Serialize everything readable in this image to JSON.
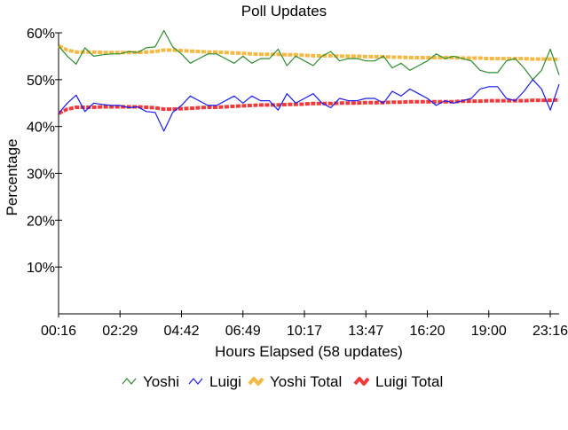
{
  "chart_data": {
    "type": "line",
    "title": "Poll Updates",
    "xlabel": "Hours Elapsed (58 updates)",
    "ylabel": "Percentage",
    "ylim": [
      0,
      60
    ],
    "yticks": [
      "10%",
      "20%",
      "30%",
      "40%",
      "50%",
      "60%"
    ],
    "xticks": [
      "00:16",
      "02:29",
      "04:42",
      "06:49",
      "10:17",
      "13:47",
      "16:20",
      "19:00",
      "23:16"
    ],
    "x_count": 58,
    "grid": false,
    "legend_position": "bottom",
    "series": [
      {
        "name": "Yoshi",
        "color": "#2e8b2e",
        "style": "thin",
        "values": [
          57.2,
          55.0,
          53.3,
          56.8,
          55.0,
          55.3,
          55.5,
          55.5,
          56.0,
          55.8,
          56.8,
          57.0,
          60.5,
          57.0,
          55.5,
          53.5,
          54.5,
          55.5,
          55.5,
          54.5,
          53.5,
          55.0,
          53.5,
          54.5,
          54.5,
          56.5,
          53.0,
          55.0,
          54.0,
          53.0,
          55.0,
          56.0,
          54.0,
          54.5,
          54.5,
          54.0,
          54.0,
          55.0,
          52.5,
          53.5,
          52.0,
          53.0,
          54.0,
          55.5,
          54.5,
          55.0,
          54.5,
          54.0,
          52.0,
          51.5,
          51.5,
          54.0,
          54.5,
          52.5,
          50.0,
          52.0,
          56.5,
          51.0
        ]
      },
      {
        "name": "Luigi",
        "color": "#1a1aee",
        "style": "thin",
        "values": [
          42.8,
          45.0,
          46.7,
          43.2,
          45.0,
          44.7,
          44.5,
          44.5,
          44.0,
          44.2,
          43.2,
          43.0,
          39.0,
          43.0,
          44.5,
          46.5,
          45.5,
          44.5,
          44.5,
          45.5,
          46.5,
          45.0,
          46.5,
          45.5,
          45.5,
          43.5,
          47.0,
          45.0,
          46.0,
          47.0,
          45.0,
          44.0,
          46.0,
          45.5,
          45.5,
          46.0,
          46.0,
          45.0,
          47.5,
          46.5,
          48.0,
          47.0,
          46.0,
          44.5,
          45.5,
          45.0,
          45.5,
          46.0,
          48.0,
          48.5,
          48.5,
          46.0,
          45.5,
          47.5,
          50.0,
          48.0,
          43.5,
          49.0
        ]
      },
      {
        "name": "Yoshi Total",
        "color": "#f5b842",
        "style": "thick",
        "values": [
          57.2,
          56.3,
          55.9,
          55.9,
          55.9,
          55.8,
          55.8,
          55.8,
          55.8,
          55.8,
          55.9,
          56.0,
          56.3,
          56.3,
          56.2,
          56.1,
          56.0,
          55.9,
          55.9,
          55.8,
          55.7,
          55.6,
          55.5,
          55.4,
          55.4,
          55.4,
          55.3,
          55.3,
          55.2,
          55.1,
          55.1,
          55.1,
          55.0,
          55.0,
          55.0,
          54.9,
          54.9,
          54.9,
          54.8,
          54.8,
          54.7,
          54.7,
          54.7,
          54.7,
          54.7,
          54.7,
          54.6,
          54.6,
          54.6,
          54.5,
          54.5,
          54.5,
          54.5,
          54.5,
          54.4,
          54.4,
          54.4,
          54.3
        ]
      },
      {
        "name": "Luigi Total",
        "color": "#ee3a3a",
        "style": "thick",
        "values": [
          42.8,
          43.7,
          44.1,
          44.1,
          44.1,
          44.2,
          44.2,
          44.2,
          44.2,
          44.2,
          44.1,
          44.0,
          43.7,
          43.7,
          43.8,
          43.9,
          44.0,
          44.1,
          44.1,
          44.2,
          44.3,
          44.4,
          44.5,
          44.6,
          44.6,
          44.6,
          44.7,
          44.7,
          44.8,
          44.9,
          44.9,
          44.9,
          45.0,
          45.0,
          45.0,
          45.1,
          45.1,
          45.1,
          45.2,
          45.2,
          45.3,
          45.3,
          45.3,
          45.3,
          45.3,
          45.3,
          45.4,
          45.4,
          45.4,
          45.5,
          45.5,
          45.5,
          45.5,
          45.5,
          45.6,
          45.6,
          45.6,
          45.7
        ]
      }
    ]
  }
}
